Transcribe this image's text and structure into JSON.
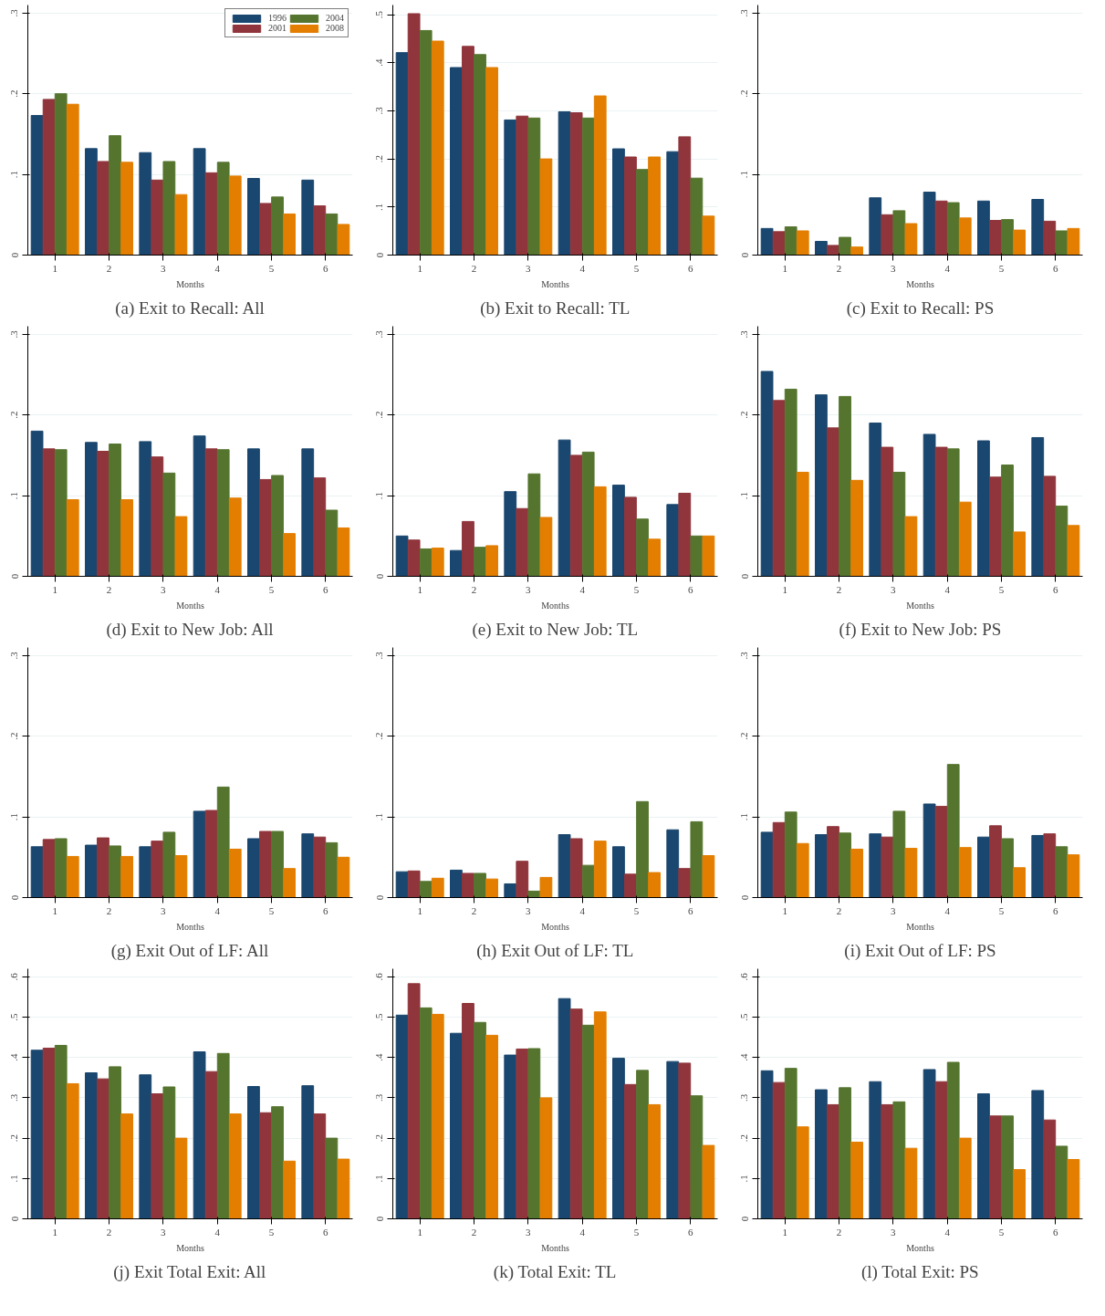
{
  "chart_data": [
    {
      "type": "bar",
      "title": "(a) Exit to Recall: All",
      "xlabel": "Months",
      "categories": [
        "1",
        "2",
        "3",
        "4",
        "5",
        "6"
      ],
      "ylim": [
        0,
        0.31
      ],
      "yticks": [
        {
          "value": 0,
          "label": "0"
        },
        {
          "value": 0.1,
          "label": ".1"
        },
        {
          "value": 0.2,
          "label": ".2"
        },
        {
          "value": 0.3,
          "label": ".3"
        }
      ],
      "grid": "y",
      "legend": "top right",
      "series": [
        {
          "name": "1996",
          "color": "#1a476f",
          "values": [
            0.173,
            0.132,
            0.127,
            0.132,
            0.095,
            0.093
          ]
        },
        {
          "name": "2001",
          "color": "#90353b",
          "values": [
            0.193,
            0.116,
            0.093,
            0.102,
            0.064,
            0.061
          ]
        },
        {
          "name": "2004",
          "color": "#55752f",
          "values": [
            0.2,
            0.148,
            0.116,
            0.115,
            0.072,
            0.051
          ]
        },
        {
          "name": "2008",
          "color": "#e37e00",
          "values": [
            0.187,
            0.115,
            0.075,
            0.098,
            0.051,
            0.038
          ]
        }
      ]
    },
    {
      "type": "bar",
      "title": "(b) Exit to Recall: TL",
      "xlabel": "Months",
      "categories": [
        "1",
        "2",
        "3",
        "4",
        "5",
        "6"
      ],
      "ylim": [
        0,
        0.52
      ],
      "yticks": [
        {
          "value": 0,
          "label": "0"
        },
        {
          "value": 0.1,
          "label": ".1"
        },
        {
          "value": 0.2,
          "label": ".2"
        },
        {
          "value": 0.3,
          "label": ".3"
        },
        {
          "value": 0.4,
          "label": ".4"
        },
        {
          "value": 0.5,
          "label": ".5"
        }
      ],
      "grid": "y",
      "series": [
        {
          "color": "#1a476f",
          "values": [
            0.421,
            0.39,
            0.281,
            0.298,
            0.221,
            0.215
          ]
        },
        {
          "color": "#90353b",
          "values": [
            0.502,
            0.434,
            0.289,
            0.296,
            0.204,
            0.246
          ]
        },
        {
          "color": "#55752f",
          "values": [
            0.467,
            0.417,
            0.285,
            0.285,
            0.178,
            0.16
          ]
        },
        {
          "color": "#e37e00",
          "values": [
            0.445,
            0.39,
            0.2,
            0.331,
            0.204,
            0.081
          ]
        }
      ]
    },
    {
      "type": "bar",
      "title": "(c) Exit to Recall: PS",
      "xlabel": "Months",
      "categories": [
        "1",
        "2",
        "3",
        "4",
        "5",
        "6"
      ],
      "ylim": [
        0,
        0.31
      ],
      "yticks": [
        {
          "value": 0,
          "label": "0"
        },
        {
          "value": 0.1,
          "label": ".1"
        },
        {
          "value": 0.2,
          "label": ".2"
        },
        {
          "value": 0.3,
          "label": ".3"
        }
      ],
      "grid": "y",
      "series": [
        {
          "color": "#1a476f",
          "values": [
            0.033,
            0.017,
            0.071,
            0.078,
            0.067,
            0.069
          ]
        },
        {
          "color": "#90353b",
          "values": [
            0.029,
            0.012,
            0.05,
            0.067,
            0.043,
            0.042
          ]
        },
        {
          "color": "#55752f",
          "values": [
            0.035,
            0.022,
            0.055,
            0.065,
            0.044,
            0.03
          ]
        },
        {
          "color": "#e37e00",
          "values": [
            0.03,
            0.01,
            0.039,
            0.046,
            0.031,
            0.033
          ]
        }
      ]
    },
    {
      "type": "bar",
      "title": "(d) Exit to New Job: All",
      "xlabel": "Months",
      "categories": [
        "1",
        "2",
        "3",
        "4",
        "5",
        "6"
      ],
      "ylim": [
        0,
        0.31
      ],
      "yticks": [
        {
          "value": 0,
          "label": "0"
        },
        {
          "value": 0.1,
          "label": ".1"
        },
        {
          "value": 0.2,
          "label": ".2"
        },
        {
          "value": 0.3,
          "label": ".3"
        }
      ],
      "grid": "y",
      "series": [
        {
          "color": "#1a476f",
          "values": [
            0.18,
            0.166,
            0.167,
            0.174,
            0.158,
            0.158
          ]
        },
        {
          "color": "#90353b",
          "values": [
            0.158,
            0.155,
            0.148,
            0.158,
            0.12,
            0.122
          ]
        },
        {
          "color": "#55752f",
          "values": [
            0.157,
            0.164,
            0.128,
            0.157,
            0.125,
            0.082
          ]
        },
        {
          "color": "#e37e00",
          "values": [
            0.095,
            0.095,
            0.074,
            0.097,
            0.053,
            0.06
          ]
        }
      ]
    },
    {
      "type": "bar",
      "title": "(e) Exit to New Job: TL",
      "xlabel": "Months",
      "categories": [
        "1",
        "2",
        "3",
        "4",
        "5",
        "6"
      ],
      "ylim": [
        0,
        0.31
      ],
      "yticks": [
        {
          "value": 0,
          "label": "0"
        },
        {
          "value": 0.1,
          "label": ".1"
        },
        {
          "value": 0.2,
          "label": ".2"
        },
        {
          "value": 0.3,
          "label": ".3"
        }
      ],
      "grid": "y",
      "series": [
        {
          "color": "#1a476f",
          "values": [
            0.05,
            0.032,
            0.105,
            0.169,
            0.113,
            0.089
          ]
        },
        {
          "color": "#90353b",
          "values": [
            0.045,
            0.068,
            0.084,
            0.15,
            0.098,
            0.103
          ]
        },
        {
          "color": "#55752f",
          "values": [
            0.034,
            0.036,
            0.127,
            0.154,
            0.071,
            0.05
          ]
        },
        {
          "color": "#e37e00",
          "values": [
            0.035,
            0.038,
            0.073,
            0.111,
            0.046,
            0.05
          ]
        }
      ]
    },
    {
      "type": "bar",
      "title": "(f) Exit to New Job: PS",
      "xlabel": "Months",
      "categories": [
        "1",
        "2",
        "3",
        "4",
        "5",
        "6"
      ],
      "ylim": [
        0,
        0.31
      ],
      "yticks": [
        {
          "value": 0,
          "label": "0"
        },
        {
          "value": 0.1,
          "label": ".1"
        },
        {
          "value": 0.2,
          "label": ".2"
        },
        {
          "value": 0.3,
          "label": ".3"
        }
      ],
      "grid": "y",
      "series": [
        {
          "color": "#1a476f",
          "values": [
            0.254,
            0.225,
            0.19,
            0.176,
            0.168,
            0.172
          ]
        },
        {
          "color": "#90353b",
          "values": [
            0.218,
            0.184,
            0.16,
            0.16,
            0.123,
            0.124
          ]
        },
        {
          "color": "#55752f",
          "values": [
            0.232,
            0.223,
            0.129,
            0.158,
            0.138,
            0.087
          ]
        },
        {
          "color": "#e37e00",
          "values": [
            0.129,
            0.119,
            0.074,
            0.092,
            0.055,
            0.063
          ]
        }
      ]
    },
    {
      "type": "bar",
      "title": "(g) Exit Out of LF: All",
      "xlabel": "Months",
      "categories": [
        "1",
        "2",
        "3",
        "4",
        "5",
        "6"
      ],
      "ylim": [
        0,
        0.31
      ],
      "yticks": [
        {
          "value": 0,
          "label": "0"
        },
        {
          "value": 0.1,
          "label": ".1"
        },
        {
          "value": 0.2,
          "label": ".2"
        },
        {
          "value": 0.3,
          "label": ".3"
        }
      ],
      "grid": "y",
      "series": [
        {
          "color": "#1a476f",
          "values": [
            0.063,
            0.065,
            0.063,
            0.107,
            0.073,
            0.079
          ]
        },
        {
          "color": "#90353b",
          "values": [
            0.072,
            0.074,
            0.07,
            0.108,
            0.082,
            0.075
          ]
        },
        {
          "color": "#55752f",
          "values": [
            0.073,
            0.064,
            0.081,
            0.137,
            0.082,
            0.068
          ]
        },
        {
          "color": "#e37e00",
          "values": [
            0.051,
            0.051,
            0.052,
            0.06,
            0.036,
            0.05
          ]
        }
      ]
    },
    {
      "type": "bar",
      "title": "(h) Exit Out of LF: TL",
      "xlabel": "Months",
      "categories": [
        "1",
        "2",
        "3",
        "4",
        "5",
        "6"
      ],
      "ylim": [
        0,
        0.31
      ],
      "yticks": [
        {
          "value": 0,
          "label": "0"
        },
        {
          "value": 0.1,
          "label": ".1"
        },
        {
          "value": 0.2,
          "label": ".2"
        },
        {
          "value": 0.3,
          "label": ".3"
        }
      ],
      "grid": "y",
      "series": [
        {
          "color": "#1a476f",
          "values": [
            0.032,
            0.034,
            0.017,
            0.078,
            0.063,
            0.084
          ]
        },
        {
          "color": "#90353b",
          "values": [
            0.033,
            0.03,
            0.045,
            0.073,
            0.029,
            0.036
          ]
        },
        {
          "color": "#55752f",
          "values": [
            0.02,
            0.03,
            0.008,
            0.04,
            0.119,
            0.094
          ]
        },
        {
          "color": "#e37e00",
          "values": [
            0.024,
            0.023,
            0.025,
            0.07,
            0.031,
            0.052
          ]
        }
      ]
    },
    {
      "type": "bar",
      "title": "(i) Exit Out of LF: PS",
      "xlabel": "Months",
      "categories": [
        "1",
        "2",
        "3",
        "4",
        "5",
        "6"
      ],
      "ylim": [
        0,
        0.31
      ],
      "yticks": [
        {
          "value": 0,
          "label": "0"
        },
        {
          "value": 0.1,
          "label": ".1"
        },
        {
          "value": 0.2,
          "label": ".2"
        },
        {
          "value": 0.3,
          "label": ".3"
        }
      ],
      "grid": "y",
      "series": [
        {
          "color": "#1a476f",
          "values": [
            0.081,
            0.078,
            0.079,
            0.116,
            0.075,
            0.077
          ]
        },
        {
          "color": "#90353b",
          "values": [
            0.093,
            0.088,
            0.075,
            0.113,
            0.089,
            0.079
          ]
        },
        {
          "color": "#55752f",
          "values": [
            0.106,
            0.08,
            0.107,
            0.165,
            0.073,
            0.063
          ]
        },
        {
          "color": "#e37e00",
          "values": [
            0.067,
            0.06,
            0.061,
            0.062,
            0.037,
            0.053
          ]
        }
      ]
    },
    {
      "type": "bar",
      "title": "(j) Exit Total Exit: All",
      "xlabel": "Months",
      "categories": [
        "1",
        "2",
        "3",
        "4",
        "5",
        "6"
      ],
      "ylim": [
        0,
        0.62
      ],
      "yticks": [
        {
          "value": 0,
          "label": "0"
        },
        {
          "value": 0.1,
          "label": ".1"
        },
        {
          "value": 0.2,
          "label": ".2"
        },
        {
          "value": 0.3,
          "label": ".3"
        },
        {
          "value": 0.4,
          "label": ".4"
        },
        {
          "value": 0.5,
          "label": ".5"
        },
        {
          "value": 0.6,
          "label": ".6"
        }
      ],
      "grid": "y",
      "series": [
        {
          "color": "#1a476f",
          "values": [
            0.418,
            0.362,
            0.357,
            0.414,
            0.328,
            0.33
          ]
        },
        {
          "color": "#90353b",
          "values": [
            0.423,
            0.347,
            0.31,
            0.365,
            0.263,
            0.26
          ]
        },
        {
          "color": "#55752f",
          "values": [
            0.43,
            0.377,
            0.327,
            0.41,
            0.278,
            0.2
          ]
        },
        {
          "color": "#e37e00",
          "values": [
            0.335,
            0.26,
            0.2,
            0.26,
            0.143,
            0.148
          ]
        }
      ]
    },
    {
      "type": "bar",
      "title": "(k) Total Exit: TL",
      "xlabel": "Months",
      "categories": [
        "1",
        "2",
        "3",
        "4",
        "5",
        "6"
      ],
      "ylim": [
        0,
        0.62
      ],
      "yticks": [
        {
          "value": 0,
          "label": "0"
        },
        {
          "value": 0.1,
          "label": ".1"
        },
        {
          "value": 0.2,
          "label": ".2"
        },
        {
          "value": 0.3,
          "label": ".3"
        },
        {
          "value": 0.4,
          "label": ".4"
        },
        {
          "value": 0.5,
          "label": ".5"
        },
        {
          "value": 0.6,
          "label": ".6"
        }
      ],
      "grid": "y",
      "series": [
        {
          "color": "#1a476f",
          "values": [
            0.505,
            0.46,
            0.406,
            0.546,
            0.398,
            0.39
          ]
        },
        {
          "color": "#90353b",
          "values": [
            0.583,
            0.534,
            0.421,
            0.52,
            0.333,
            0.386
          ]
        },
        {
          "color": "#55752f",
          "values": [
            0.523,
            0.487,
            0.422,
            0.48,
            0.368,
            0.305
          ]
        },
        {
          "color": "#e37e00",
          "values": [
            0.507,
            0.455,
            0.3,
            0.513,
            0.283,
            0.182
          ]
        }
      ]
    },
    {
      "type": "bar",
      "title": "(l) Total Exit: PS",
      "xlabel": "Months",
      "categories": [
        "1",
        "2",
        "3",
        "4",
        "5",
        "6"
      ],
      "ylim": [
        0,
        0.62
      ],
      "yticks": [
        {
          "value": 0,
          "label": "0"
        },
        {
          "value": 0.1,
          "label": ".1"
        },
        {
          "value": 0.2,
          "label": ".2"
        },
        {
          "value": 0.3,
          "label": ".3"
        },
        {
          "value": 0.4,
          "label": ".4"
        },
        {
          "value": 0.5,
          "label": ".5"
        },
        {
          "value": 0.6,
          "label": ".6"
        }
      ],
      "grid": "y",
      "series": [
        {
          "color": "#1a476f",
          "values": [
            0.367,
            0.32,
            0.34,
            0.37,
            0.31,
            0.318
          ]
        },
        {
          "color": "#90353b",
          "values": [
            0.338,
            0.283,
            0.283,
            0.34,
            0.255,
            0.245
          ]
        },
        {
          "color": "#55752f",
          "values": [
            0.373,
            0.325,
            0.29,
            0.388,
            0.255,
            0.18
          ]
        },
        {
          "color": "#e37e00",
          "values": [
            0.228,
            0.19,
            0.175,
            0.2,
            0.122,
            0.147
          ]
        }
      ]
    }
  ]
}
